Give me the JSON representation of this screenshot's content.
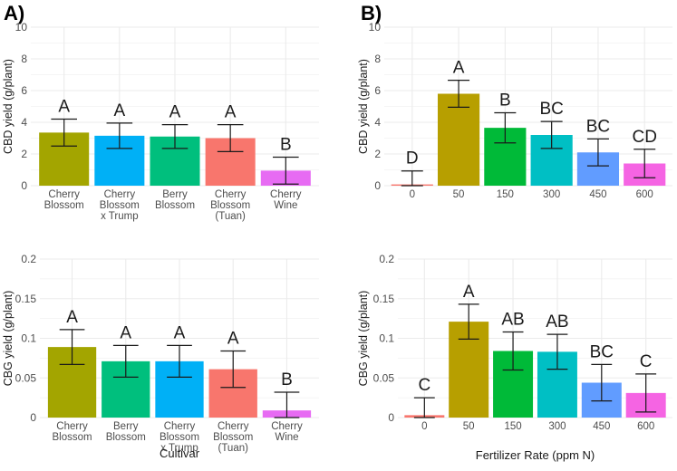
{
  "panel_labels": {
    "a": "A)",
    "b": "B)"
  },
  "colors": {
    "panel_bg": "#ffffff",
    "grid": "#ebebeb",
    "text": "#1a1a1a",
    "tick_text": "#4d4d4d",
    "error_bar": "#1a1a1a"
  },
  "chart_data": [
    {
      "id": "a-top",
      "type": "bar",
      "ylabel": "CBD yield (g/plant)",
      "xlabel": "",
      "ylim": [
        0,
        10
      ],
      "yticks": [
        0,
        2,
        4,
        6,
        8,
        10
      ],
      "ytick_labels": [
        "0",
        "2",
        "4",
        "6",
        "8",
        "10"
      ],
      "grid": true,
      "categories": [
        [
          "Cherry",
          "Blossom"
        ],
        [
          "Cherry",
          "Blossom",
          "x Trump"
        ],
        [
          "Berry",
          "Blossom"
        ],
        [
          "Cherry",
          "Blossom",
          "(Tuan)"
        ],
        [
          "Cherry",
          "Wine"
        ]
      ],
      "values": [
        3.35,
        3.15,
        3.1,
        3.0,
        0.95
      ],
      "errors": [
        0.85,
        0.8,
        0.75,
        0.85,
        0.85
      ],
      "letters": [
        "A",
        "A",
        "A",
        "A",
        "B"
      ],
      "colors": [
        "#a3a500",
        "#00b0f6",
        "#00bf7d",
        "#f8766d",
        "#e76bf3"
      ]
    },
    {
      "id": "b-top",
      "type": "bar",
      "ylabel": "CBD yield (g/plant)",
      "xlabel": "",
      "ylim": [
        0,
        10
      ],
      "yticks": [
        0,
        2,
        4,
        6,
        8,
        10
      ],
      "ytick_labels": [
        "0",
        "2",
        "4",
        "6",
        "8",
        "10"
      ],
      "grid": true,
      "categories": [
        [
          "0"
        ],
        [
          "50"
        ],
        [
          "150"
        ],
        [
          "300"
        ],
        [
          "450"
        ],
        [
          "600"
        ]
      ],
      "values": [
        0.08,
        5.8,
        3.65,
        3.2,
        2.1,
        1.4
      ],
      "errors": [
        0.85,
        0.85,
        0.95,
        0.85,
        0.85,
        0.9
      ],
      "letters": [
        "D",
        "A",
        "B",
        "BC",
        "BC",
        "CD"
      ],
      "colors": [
        "#f8766d",
        "#b79f00",
        "#00ba38",
        "#00bfc4",
        "#619cff",
        "#f564e3"
      ]
    },
    {
      "id": "a-bottom",
      "type": "bar",
      "ylabel": "CBG yield (g/plant)",
      "xlabel": "Cultivar",
      "ylim": [
        0,
        0.2
      ],
      "yticks": [
        0,
        0.05,
        0.1,
        0.15,
        0.2
      ],
      "ytick_labels": [
        "0",
        "0.05",
        "0.1",
        "0.15",
        "0.2"
      ],
      "grid": true,
      "categories": [
        [
          "Cherry",
          "Blossom"
        ],
        [
          "Berry",
          "Blossom"
        ],
        [
          "Cherry",
          "Blossom",
          "x Trump"
        ],
        [
          "Cherry",
          "Blossom",
          "(Tuan)"
        ],
        [
          "Cherry",
          "Wine"
        ]
      ],
      "values": [
        0.089,
        0.071,
        0.071,
        0.061,
        0.009
      ],
      "errors": [
        0.022,
        0.02,
        0.02,
        0.023,
        0.023
      ],
      "letters": [
        "A",
        "A",
        "A",
        "A",
        "B"
      ],
      "colors": [
        "#a3a500",
        "#00bf7d",
        "#00b0f6",
        "#f8766d",
        "#e76bf3"
      ]
    },
    {
      "id": "b-bottom",
      "type": "bar",
      "ylabel": "CBG yield (g/plant)",
      "xlabel": "Fertilizer Rate (ppm N)",
      "ylim": [
        0,
        0.2
      ],
      "yticks": [
        0,
        0.05,
        0.1,
        0.15,
        0.2
      ],
      "ytick_labels": [
        "0",
        "0.05",
        "0.1",
        "0.15",
        "0.2"
      ],
      "grid": true,
      "categories": [
        [
          "0"
        ],
        [
          "50"
        ],
        [
          "150"
        ],
        [
          "300"
        ],
        [
          "450"
        ],
        [
          "600"
        ]
      ],
      "values": [
        0.003,
        0.121,
        0.084,
        0.083,
        0.044,
        0.031
      ],
      "errors": [
        0.022,
        0.022,
        0.024,
        0.022,
        0.023,
        0.024
      ],
      "letters": [
        "C",
        "A",
        "AB",
        "AB",
        "BC",
        "C"
      ],
      "colors": [
        "#f8766d",
        "#b79f00",
        "#00ba38",
        "#00bfc4",
        "#619cff",
        "#f564e3"
      ]
    }
  ]
}
